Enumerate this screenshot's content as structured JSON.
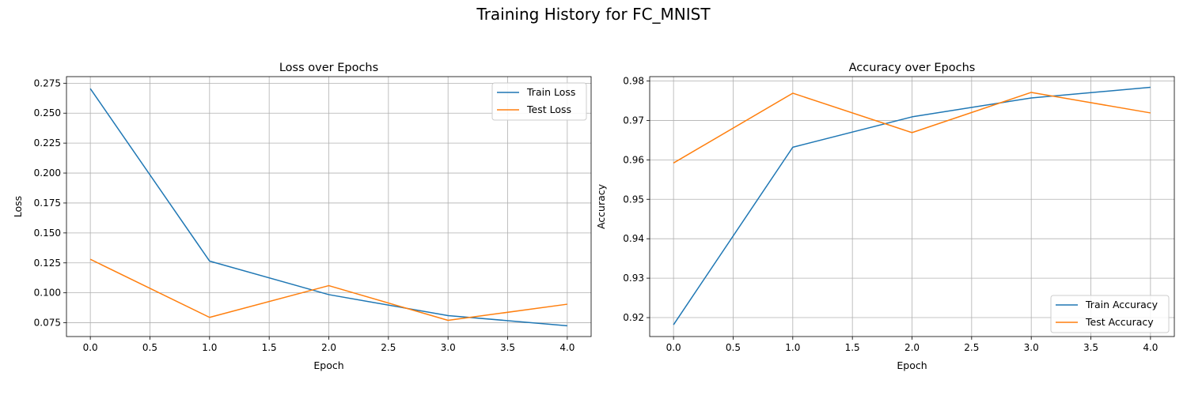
{
  "figure": {
    "suptitle": "Training History for FC_MNIST"
  },
  "chart_data": [
    {
      "type": "line",
      "title": "Loss over Epochs",
      "xlabel": "Epoch",
      "ylabel": "Loss",
      "xlim": [
        -0.2,
        4.2
      ],
      "ylim": [
        0.0635,
        0.2805
      ],
      "xticks": [
        0.0,
        0.5,
        1.0,
        1.5,
        2.0,
        2.5,
        3.0,
        3.5,
        4.0
      ],
      "yticks": [
        0.075,
        0.1,
        0.125,
        0.15,
        0.175,
        0.2,
        0.225,
        0.25,
        0.275
      ],
      "xtick_labels": [
        "0.0",
        "0.5",
        "1.0",
        "1.5",
        "2.0",
        "2.5",
        "3.0",
        "3.5",
        "4.0"
      ],
      "ytick_labels": [
        "0.075",
        "0.100",
        "0.125",
        "0.150",
        "0.175",
        "0.200",
        "0.225",
        "0.250",
        "0.275"
      ],
      "grid": true,
      "legend": "top-right",
      "x": [
        0,
        1,
        2,
        3,
        4
      ],
      "series": [
        {
          "name": "Train Loss",
          "color": "#1f77b4",
          "values": [
            0.2705,
            0.1265,
            0.0985,
            0.081,
            0.0725
          ]
        },
        {
          "name": "Test Loss",
          "color": "#ff7f0e",
          "values": [
            0.128,
            0.0795,
            0.106,
            0.077,
            0.0905
          ]
        }
      ]
    },
    {
      "type": "line",
      "title": "Accuracy over Epochs",
      "xlabel": "Epoch",
      "ylabel": "Accuracy",
      "xlim": [
        -0.2,
        4.2
      ],
      "ylim": [
        0.9152,
        0.9811
      ],
      "xticks": [
        0.0,
        0.5,
        1.0,
        1.5,
        2.0,
        2.5,
        3.0,
        3.5,
        4.0
      ],
      "yticks": [
        0.92,
        0.93,
        0.94,
        0.95,
        0.96,
        0.97,
        0.98
      ],
      "xtick_labels": [
        "0.0",
        "0.5",
        "1.0",
        "1.5",
        "2.0",
        "2.5",
        "3.0",
        "3.5",
        "4.0"
      ],
      "ytick_labels": [
        "0.92",
        "0.93",
        "0.94",
        "0.95",
        "0.96",
        "0.97",
        "0.98"
      ],
      "grid": true,
      "legend": "bottom-right",
      "x": [
        0,
        1,
        2,
        3,
        4
      ],
      "series": [
        {
          "name": "Train Accuracy",
          "color": "#1f77b4",
          "values": [
            0.9182,
            0.9632,
            0.9709,
            0.9757,
            0.9784
          ]
        },
        {
          "name": "Test Accuracy",
          "color": "#ff7f0e",
          "values": [
            0.9592,
            0.9769,
            0.9669,
            0.9771,
            0.9719
          ]
        }
      ]
    }
  ]
}
